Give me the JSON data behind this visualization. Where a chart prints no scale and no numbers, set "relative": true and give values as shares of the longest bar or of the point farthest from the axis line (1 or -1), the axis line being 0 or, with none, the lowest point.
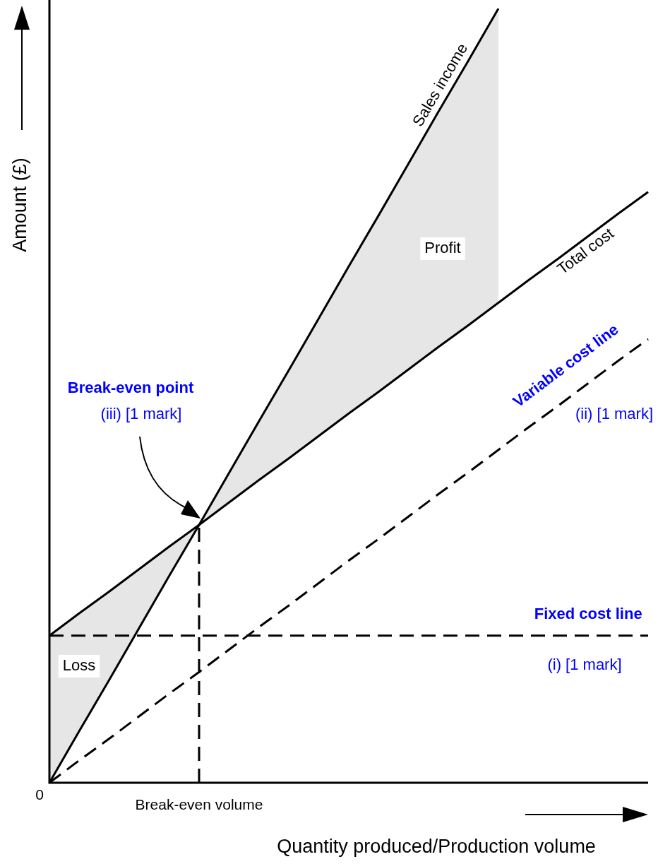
{
  "chart_data": {
    "type": "line",
    "relative": true,
    "ylabel": "Amount (£)",
    "xlabel": "Quantity produced/Production volume",
    "categories": [
      "0",
      null,
      null,
      null,
      null,
      "Break-even volume",
      null,
      null,
      null,
      null,
      null,
      null,
      null,
      null,
      null,
      null,
      null,
      null,
      null,
      null,
      null
    ],
    "series": [
      {
        "name": "Sales income",
        "color": "#000000",
        "line_style": "solid",
        "values": [
          0,
          0.067,
          0.133,
          0.2,
          0.267,
          0.333,
          0.4,
          0.467,
          0.533,
          0.6,
          0.667,
          0.733,
          0.8,
          0.867,
          0.933,
          1,
          null,
          null,
          null,
          null,
          null
        ]
      },
      {
        "name": "Total cost",
        "color": "#000000",
        "line_style": "solid",
        "values": [
          0.19,
          0.219,
          0.247,
          0.276,
          0.305,
          0.333,
          0.362,
          0.391,
          0.419,
          0.448,
          0.477,
          0.505,
          0.534,
          0.563,
          0.591,
          0.62,
          0.649,
          0.677,
          0.706,
          0.735,
          0.763
        ]
      },
      {
        "name": "Variable cost line",
        "color": "#000000",
        "line_style": "dashed",
        "values": [
          0,
          0.029,
          0.057,
          0.086,
          0.115,
          0.143,
          0.172,
          0.201,
          0.229,
          0.258,
          0.287,
          0.315,
          0.344,
          0.373,
          0.401,
          0.43,
          0.459,
          0.487,
          0.516,
          0.545,
          0.573
        ]
      },
      {
        "name": "Fixed cost line",
        "color": "#000000",
        "line_style": "dashed",
        "values": [
          0.19,
          0.19,
          0.19,
          0.19,
          0.19,
          0.19,
          0.19,
          0.19,
          0.19,
          0.19,
          0.19,
          0.19,
          0.19,
          0.19,
          0.19,
          0.19,
          0.19,
          0.19,
          0.19,
          0.19,
          0.19
        ]
      }
    ],
    "ref_lines": [
      {
        "axis": "x",
        "value": "Break-even volume",
        "line_style": "dashed"
      }
    ],
    "annotations": [
      "Break-even point",
      "(iii) [1 mark]",
      "(ii) [1 mark]",
      "(i) [1 mark]",
      "Profit",
      "Loss"
    ],
    "marker": "none",
    "legend": false
  }
}
